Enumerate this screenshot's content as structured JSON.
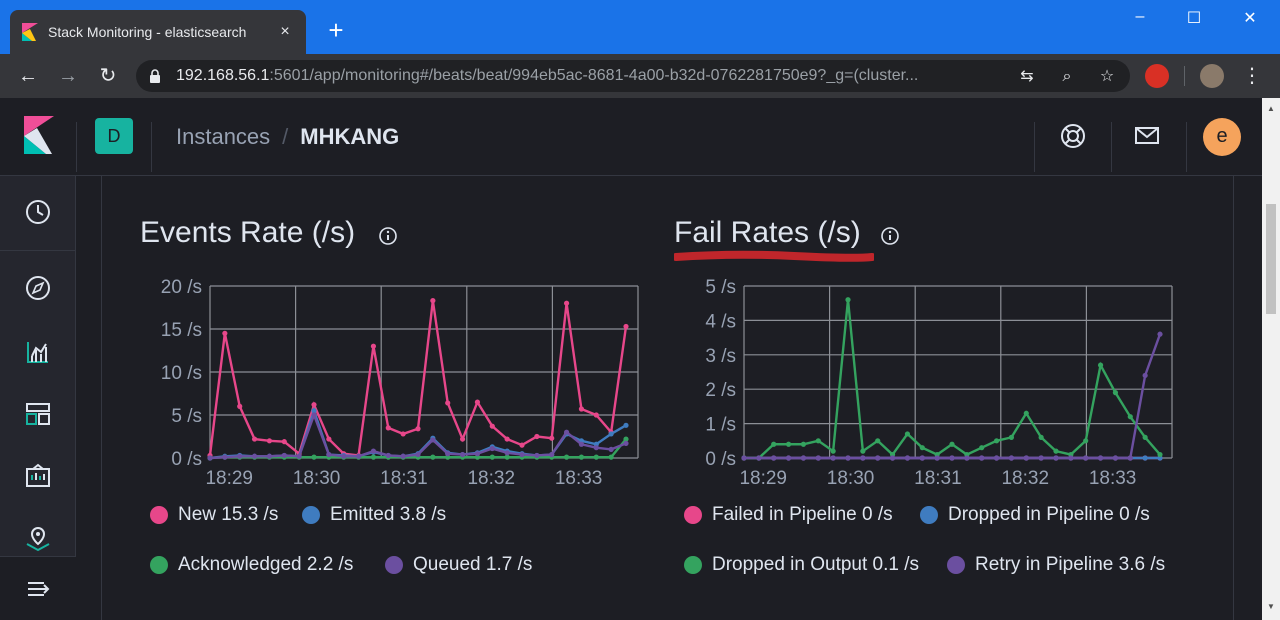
{
  "browser": {
    "tab_title": "Stack Monitoring - elasticsearch",
    "tab_close": "×",
    "new_tab": "+",
    "url_host": "192.168.56.1",
    "url_rest": ":5601/app/monitoring#/beats/beat/994eb5ac-8681-4a00-b32d-0762281750e9?_g=(cluster...",
    "window_controls": [
      "–",
      "☐",
      "✕"
    ]
  },
  "header": {
    "space_initial": "D",
    "breadcrumb_parent": "Instances",
    "breadcrumb_separator": "/",
    "breadcrumb_current": "MHKANG",
    "avatar_initial": "e"
  },
  "panels": [
    {
      "title": "Events Rate (/s)",
      "legend": [
        {
          "label": "New 15.3 /s",
          "color": "#e7478a"
        },
        {
          "label": "Emitted 3.8 /s",
          "color": "#3f7cc0"
        },
        {
          "label": "Acknowledged 2.2 /s",
          "color": "#34a35f"
        },
        {
          "label": "Queued 1.7 /s",
          "color": "#6b4fa0"
        }
      ]
    },
    {
      "title": "Fail Rates (/s)",
      "legend": [
        {
          "label": "Failed in Pipeline 0 /s",
          "color": "#e7478a"
        },
        {
          "label": "Dropped in Pipeline 0 /s",
          "color": "#3f7cc0"
        },
        {
          "label": "Dropped in Output 0.1 /s",
          "color": "#34a35f"
        },
        {
          "label": "Retry in Pipeline 3.6 /s",
          "color": "#6b4fa0"
        }
      ]
    }
  ],
  "chart_data": [
    {
      "type": "line",
      "title": "Events Rate (/s)",
      "yticks": [
        "0 /s",
        "5 /s",
        "10 /s",
        "15 /s",
        "20 /s"
      ],
      "ylim": [
        0,
        20
      ],
      "xticks": [
        "18:29",
        "18:30",
        "18:31",
        "18:32",
        "18:33"
      ],
      "grid": true,
      "series": [
        {
          "name": "New",
          "color": "#e7478a",
          "values": [
            0.3,
            14.5,
            6,
            2.2,
            2,
            1.9,
            0.5,
            6.2,
            2.2,
            0.5,
            0.3,
            13,
            3.5,
            2.8,
            3.4,
            18.3,
            6.4,
            2.2,
            6.5,
            3.7,
            2.2,
            1.5,
            2.5,
            2.3,
            18,
            5.7,
            5,
            3,
            15.3
          ]
        },
        {
          "name": "Emitted",
          "color": "#3f7cc0",
          "values": [
            0,
            0.2,
            0.3,
            0.2,
            0.2,
            0.3,
            0.2,
            5.5,
            0.4,
            0.3,
            0.2,
            0.7,
            0.3,
            0.2,
            0.5,
            2.3,
            0.6,
            0.4,
            0.6,
            1.3,
            0.8,
            0.5,
            0.3,
            0.4,
            2.8,
            2.0,
            1.6,
            2.8,
            3.8
          ]
        },
        {
          "name": "Acknowledged",
          "color": "#34a35f",
          "values": [
            0,
            0.1,
            0.1,
            0.1,
            0.1,
            0.1,
            0.1,
            0.1,
            0.1,
            0.1,
            0.1,
            0.1,
            0.1,
            0.1,
            0.1,
            0.1,
            0.1,
            0.1,
            0.1,
            0.1,
            0.1,
            0.1,
            0.1,
            0.1,
            0.1,
            0.1,
            0.1,
            0.1,
            2.2
          ]
        },
        {
          "name": "Queued",
          "color": "#6b4fa0",
          "values": [
            0,
            0.1,
            0.2,
            0.2,
            0.2,
            0.3,
            0.2,
            5,
            0.4,
            0.2,
            0.2,
            0.8,
            0.3,
            0.2,
            0.4,
            2.1,
            0.5,
            0.4,
            0.5,
            1.1,
            0.6,
            0.4,
            0.3,
            0.4,
            3,
            1.6,
            1.2,
            1.0,
            1.7
          ]
        }
      ]
    },
    {
      "type": "line",
      "title": "Fail Rates (/s)",
      "yticks": [
        "0 /s",
        "1 /s",
        "2 /s",
        "3 /s",
        "4 /s",
        "5 /s"
      ],
      "ylim": [
        0,
        5
      ],
      "xticks": [
        "18:29",
        "18:30",
        "18:31",
        "18:32",
        "18:33"
      ],
      "grid": true,
      "series": [
        {
          "name": "Failed in Pipeline",
          "color": "#e7478a",
          "values": [
            0,
            0,
            0,
            0,
            0,
            0,
            0,
            0,
            0,
            0,
            0,
            0,
            0,
            0,
            0,
            0,
            0,
            0,
            0,
            0,
            0,
            0,
            0,
            0,
            0,
            0,
            0,
            0,
            0
          ]
        },
        {
          "name": "Dropped in Pipeline",
          "color": "#3f7cc0",
          "values": [
            0,
            0,
            0,
            0,
            0,
            0,
            0,
            0,
            0,
            0,
            0,
            0,
            0,
            0,
            0,
            0,
            0,
            0,
            0,
            0,
            0,
            0,
            0,
            0,
            0,
            0,
            0,
            0,
            0
          ]
        },
        {
          "name": "Dropped in Output",
          "color": "#34a35f",
          "values": [
            0,
            0,
            0.4,
            0.4,
            0.4,
            0.5,
            0.2,
            4.6,
            0.2,
            0.5,
            0.1,
            0.7,
            0.3,
            0.1,
            0.4,
            0.1,
            0.3,
            0.5,
            0.6,
            1.3,
            0.6,
            0.2,
            0.1,
            0.5,
            2.7,
            1.9,
            1.2,
            0.6,
            0.1
          ]
        },
        {
          "name": "Retry in Pipeline",
          "color": "#6b4fa0",
          "values": [
            0,
            0,
            0,
            0,
            0,
            0,
            0,
            0,
            0,
            0,
            0,
            0,
            0,
            0,
            0,
            0,
            0,
            0,
            0,
            0,
            0,
            0,
            0,
            0,
            0,
            0,
            0,
            2.4,
            3.6
          ]
        }
      ]
    }
  ]
}
